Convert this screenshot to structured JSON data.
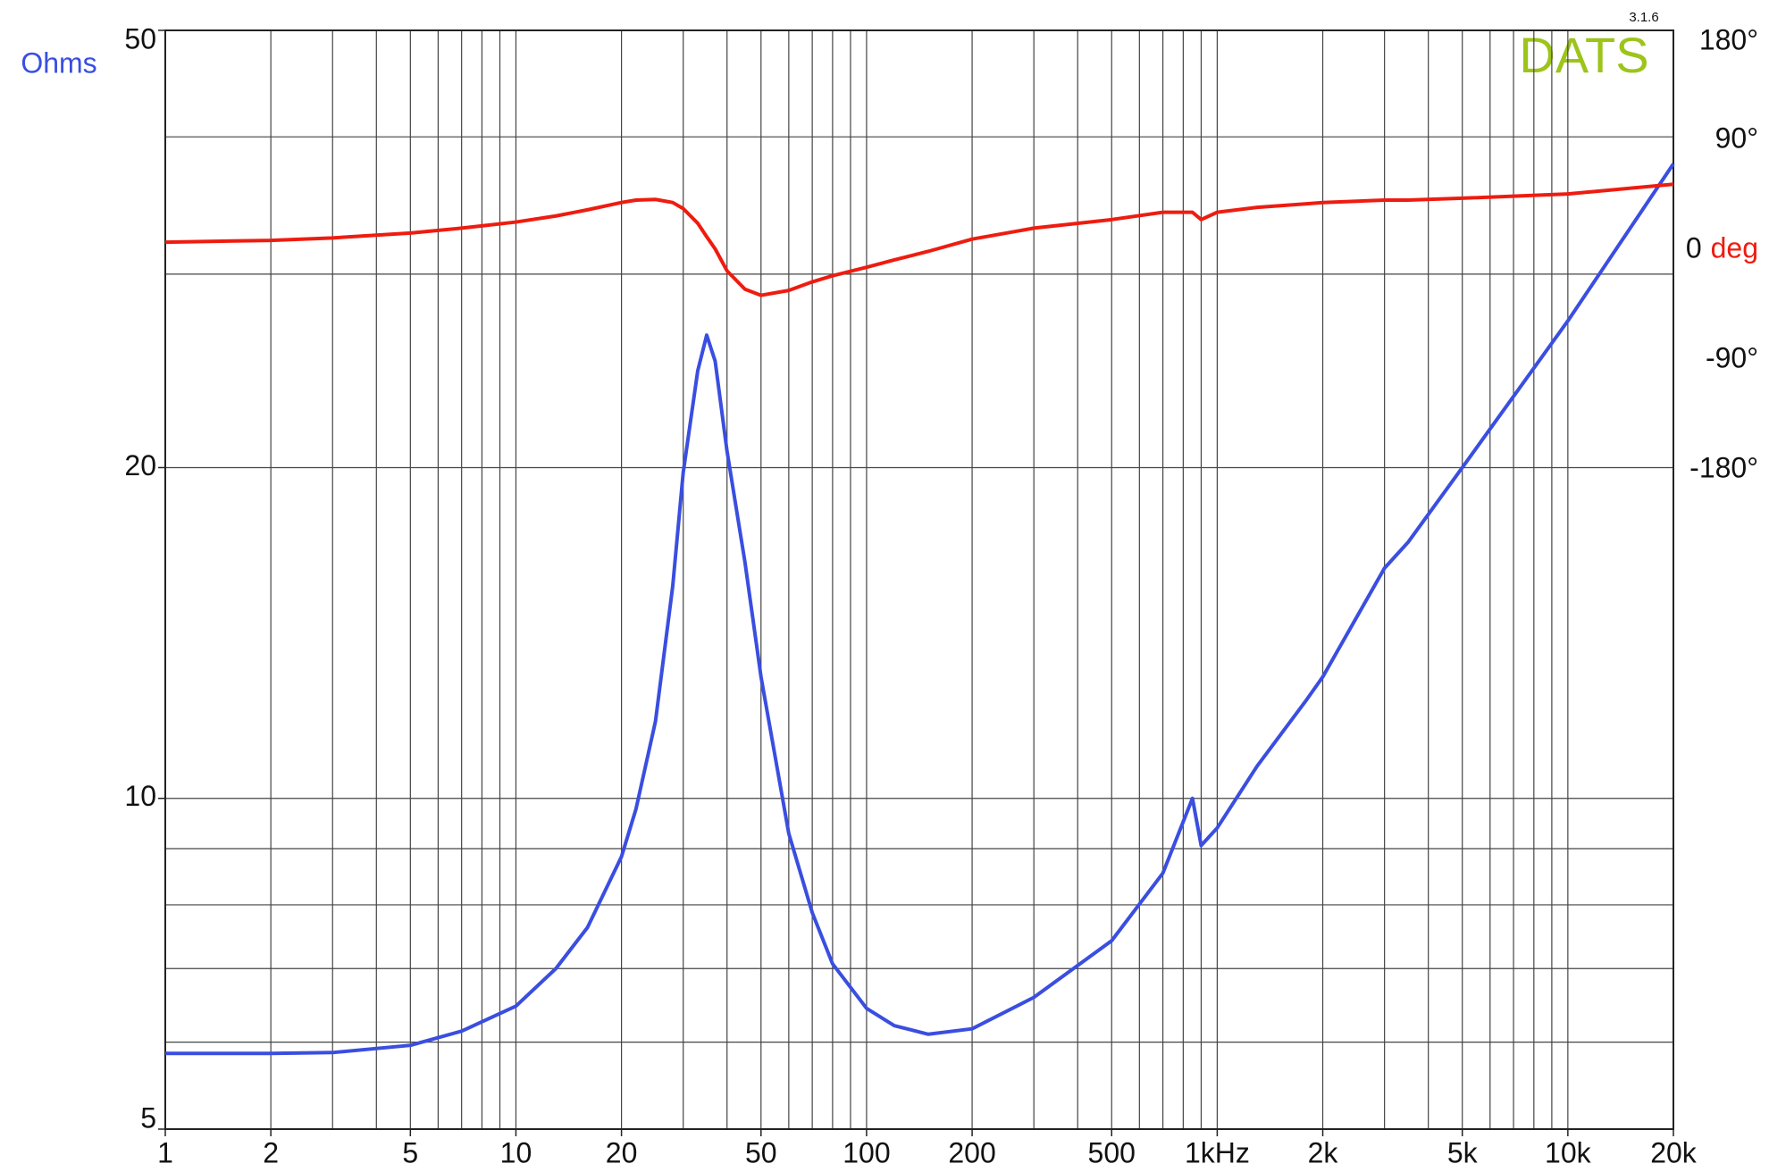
{
  "chart_data": {
    "type": "line",
    "x_scale": "log",
    "y_scale": "log",
    "brand": "DATS",
    "version": "3.1.6",
    "ylabel": "Ohms",
    "y2label": "deg",
    "xlim": [
      1,
      20000
    ],
    "ylim": [
      5,
      50
    ],
    "y2lim": [
      -720,
      180
    ],
    "xticks": [
      1,
      2,
      5,
      10,
      20,
      50,
      100,
      200,
      500,
      {
        "value": 1000,
        "label": "1kHz"
      },
      {
        "value": 2000,
        "label": "2k"
      },
      {
        "value": 5000,
        "label": "5k"
      },
      {
        "value": 10000,
        "label": "10k"
      },
      {
        "value": 20000,
        "label": "20k"
      }
    ],
    "yticks": [
      5,
      10,
      20,
      50
    ],
    "y2ticks": [
      {
        "value": 180,
        "label": "180°"
      },
      {
        "value": 90,
        "label": "90°"
      },
      0,
      {
        "value": -90,
        "label": "-90°"
      },
      {
        "value": -180,
        "label": "-180°"
      }
    ],
    "x_grid": [
      2,
      3,
      4,
      5,
      6,
      7,
      8,
      9,
      10,
      20,
      30,
      40,
      50,
      60,
      70,
      80,
      90,
      100,
      200,
      300,
      400,
      500,
      600,
      700,
      800,
      900,
      1000,
      2000,
      3000,
      4000,
      5000,
      6000,
      7000,
      8000,
      9000,
      10000
    ],
    "y_grid": [
      6,
      7,
      8,
      9,
      10,
      20,
      30,
      40
    ],
    "grid": true,
    "x": [
      1,
      2,
      3,
      5,
      7,
      10,
      13,
      16,
      20,
      22,
      25,
      28,
      30,
      33,
      35,
      37,
      40,
      45,
      50,
      60,
      70,
      80,
      100,
      120,
      150,
      200,
      300,
      500,
      700,
      850,
      900,
      1000,
      1300,
      1800,
      2000,
      3000,
      3500,
      5000,
      10000,
      20000
    ],
    "series": [
      {
        "color": "#3a4ee0",
        "axis": "y",
        "values": [
          5.86,
          5.86,
          5.87,
          5.96,
          6.14,
          6.47,
          7.0,
          7.63,
          8.85,
          9.78,
          11.75,
          15.6,
          19.8,
          24.5,
          26.4,
          25.0,
          20.7,
          16.4,
          12.9,
          9.29,
          7.87,
          7.07,
          6.44,
          6.21,
          6.1,
          6.17,
          6.59,
          7.42,
          8.55,
          10,
          9.06,
          9.4,
          10.7,
          12.3,
          12.9,
          16.2,
          17.1,
          20,
          27.2,
          37.8
        ]
      },
      {
        "color": "#ee1c10",
        "axis": "y2",
        "values": [
          6.5,
          8,
          10,
          14,
          18,
          23,
          28,
          33,
          39,
          41,
          41.5,
          39,
          34,
          22,
          11,
          1,
          -17,
          -32,
          -37,
          -33,
          -26,
          -21,
          -14,
          -8,
          -1,
          9,
          18,
          25,
          31,
          31,
          25,
          31,
          35,
          38,
          39,
          41,
          41,
          42.5,
          46,
          54
        ]
      }
    ]
  }
}
